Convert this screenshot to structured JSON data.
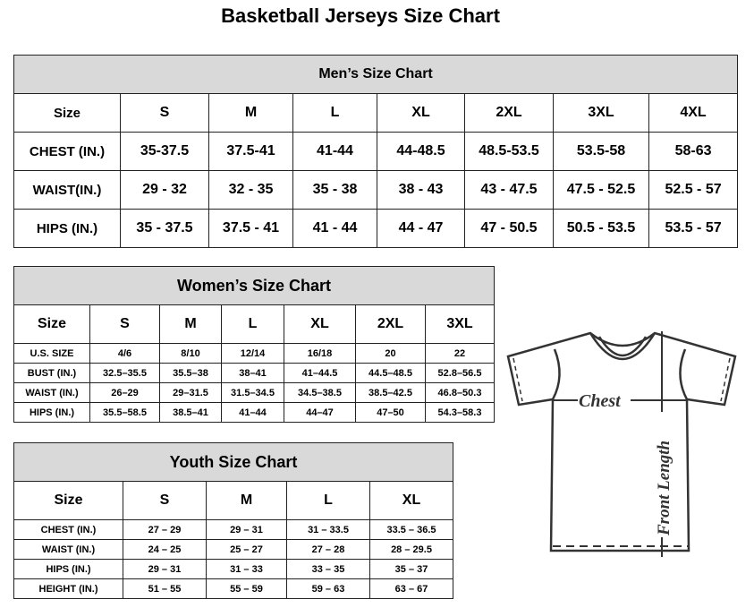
{
  "title": "Basketball Jerseys Size Chart",
  "men": {
    "heading": "Men’s Size Chart",
    "header": [
      "Size",
      "S",
      "M",
      "L",
      "XL",
      "2XL",
      "3XL",
      "4XL"
    ],
    "rows": [
      [
        "CHEST (IN.)",
        "35-37.5",
        "37.5-41",
        "41-44",
        "44-48.5",
        "48.5-53.5",
        "53.5-58",
        "58-63"
      ],
      [
        "WAIST(IN.)",
        "29 - 32",
        "32 - 35",
        "35 - 38",
        "38 - 43",
        "43 - 47.5",
        "47.5 - 52.5",
        "52.5 - 57"
      ],
      [
        "HIPS (IN.)",
        "35 - 37.5",
        "37.5 - 41",
        "41 - 44",
        "44 - 47",
        "47 - 50.5",
        "50.5 - 53.5",
        "53.5 - 57"
      ]
    ]
  },
  "women": {
    "heading": "Women’s Size Chart",
    "header": [
      "Size",
      "S",
      "M",
      "L",
      "XL",
      "2XL",
      "3XL"
    ],
    "rows": [
      [
        "U.S. SIZE",
        "4/6",
        "8/10",
        "12/14",
        "16/18",
        "20",
        "22"
      ],
      [
        "BUST (IN.)",
        "32.5–35.5",
        "35.5–38",
        "38–41",
        "41–44.5",
        "44.5–48.5",
        "52.8–56.5"
      ],
      [
        "WAIST (IN.)",
        "26–29",
        "29–31.5",
        "31.5–34.5",
        "34.5–38.5",
        "38.5–42.5",
        "46.8–50.3"
      ],
      [
        "HIPS (IN.)",
        "35.5–58.5",
        "38.5–41",
        "41–44",
        "44–47",
        "47–50",
        "54.3–58.3"
      ]
    ]
  },
  "youth": {
    "heading": "Youth Size Chart",
    "header": [
      "Size",
      "S",
      "M",
      "L",
      "XL"
    ],
    "rows": [
      [
        "CHEST (IN.)",
        "27 – 29",
        "29 – 31",
        "31 – 33.5",
        "33.5 – 36.5"
      ],
      [
        "WAIST (IN.)",
        "24 – 25",
        "25 – 27",
        "27 – 28",
        "28 – 29.5"
      ],
      [
        "HIPS (IN.)",
        "29 – 31",
        "31 – 33",
        "33 – 35",
        "35 – 37"
      ],
      [
        "HEIGHT (IN.)",
        "51 – 55",
        "55 – 59",
        "59 – 63",
        "63 – 67"
      ]
    ]
  },
  "diagram": {
    "chest_label": "Chest",
    "length_label": "Front Length"
  }
}
